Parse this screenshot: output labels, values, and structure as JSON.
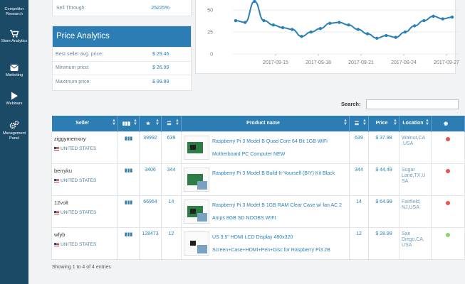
{
  "sidebar": {
    "items": [
      {
        "label": "Competitor Research",
        "icon": "users-icon"
      },
      {
        "label": "Store Analytics",
        "icon": "cart-icon"
      },
      {
        "label": "Marketing",
        "icon": "envelope-icon"
      },
      {
        "label": "Webinars",
        "icon": "play-icon"
      },
      {
        "label": "Management Panel",
        "icon": "gears-icon"
      }
    ]
  },
  "stats": {
    "sell_through_label": "Sell Through:",
    "sell_through_value": "25225%"
  },
  "price_analytics": {
    "title": "Price Analytics",
    "rows": [
      {
        "label": "Best seller avg. price:",
        "value": "$ 29.46"
      },
      {
        "label": "Minimum price:",
        "value": "$ 26.99"
      },
      {
        "label": "Maximum price:",
        "value": "$ 99.99"
      }
    ]
  },
  "chart_data": {
    "type": "line",
    "x_tick_labels": [
      "2017-09-15",
      "2017-09-18",
      "2017-09-21",
      "2017-09-24",
      "2017-09-27"
    ],
    "y_tick_labels": [
      "50",
      "25",
      "0"
    ],
    "ylim": [
      0,
      68
    ],
    "series": [
      {
        "values": [
          38,
          36,
          60,
          38,
          33,
          30,
          28,
          20,
          25,
          29,
          35,
          36,
          33,
          28,
          23,
          18,
          21,
          19,
          25,
          32,
          38,
          43,
          40,
          42
        ]
      }
    ],
    "color": "#2a80b9"
  },
  "search": {
    "label": "Search:",
    "value": ""
  },
  "table": {
    "headers": [
      "Seller",
      "",
      "",
      "",
      "Product name",
      "",
      "Price",
      "Location",
      ""
    ],
    "rows": [
      {
        "seller": "ziggymemory",
        "country": "UNITED STATES",
        "feedback": "39992",
        "sold": "639",
        "product": "Raspberry Pi 3 Model B Quad Core 64 Bit 1GB WiFi Motherboard PC Computer NEW",
        "sold2": "639",
        "price": "$ 37.98",
        "location": "Walnut,CA ,USA",
        "status": "red"
      },
      {
        "seller": "berryku",
        "country": "UNITED STATES",
        "feedback": "3406",
        "sold": "344",
        "product": "Raspberry Pi 3 Model B Build-It-Yourself (BIY) Kit Black",
        "sold2": "344",
        "price": "$ 44.49",
        "location": "Sugar Land,TX,U SA",
        "status": "red"
      },
      {
        "seller": "12volt",
        "country": "UNITED STATES",
        "feedback": "66964",
        "sold": "14",
        "product": "Raspberry Pi 3 Model B 1GB RAM Clear Case w/ fan AC 2 Amps 8GB SD NOOBS WIFI",
        "sold2": "14",
        "price": "$ 64.99",
        "location": "Fairfield, NJ,USA",
        "status": "red"
      },
      {
        "seller": "wfyb",
        "country": "UNITED STATES",
        "feedback": "128473",
        "sold": "12",
        "product": "US 3.5\" HDMI LCD Display 480x320 Screen+Case+HDMI+Pen+Disc for Raspberry Pi3 2B",
        "sold2": "12",
        "price": "$ 28.99",
        "location": "San Diego,CA, USA",
        "status": "green"
      }
    ]
  },
  "footer": {
    "entries_text": "Showing 1 to 4 of 4 entries"
  }
}
